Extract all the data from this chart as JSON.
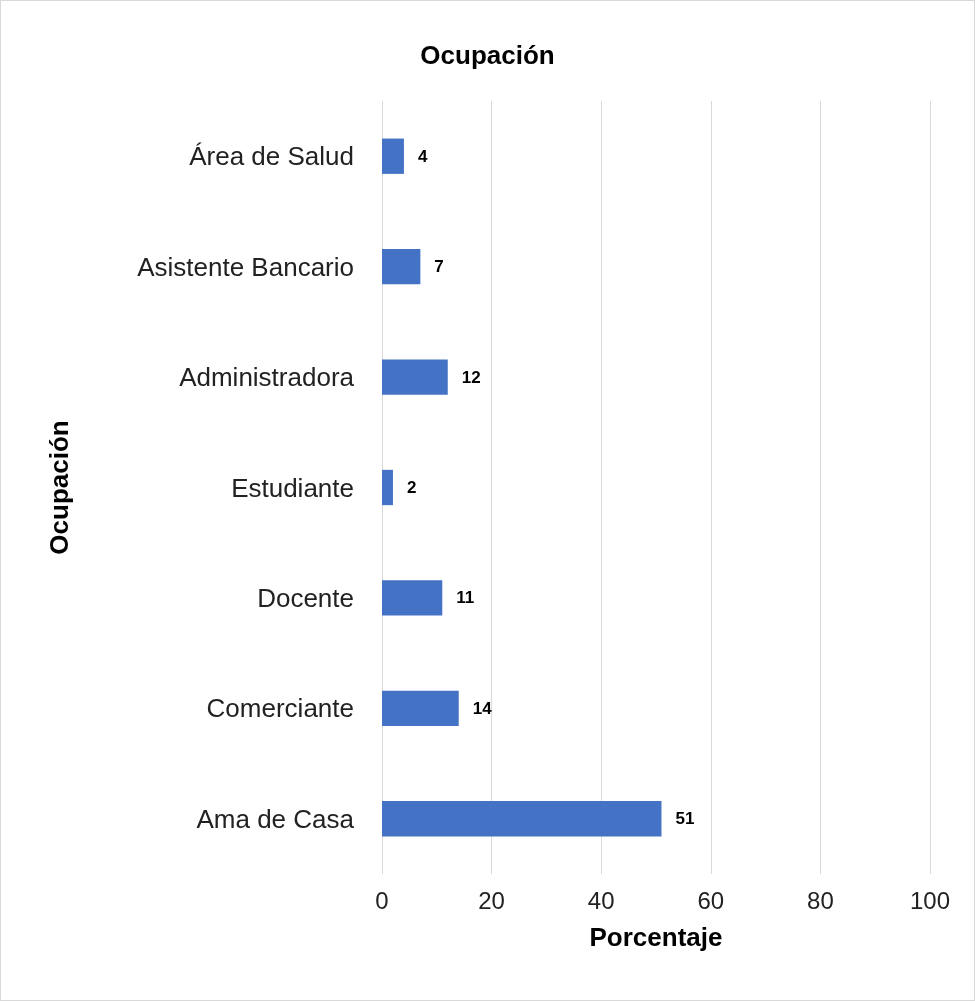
{
  "chart_data": {
    "type": "bar",
    "orientation": "horizontal",
    "title": "Ocupación",
    "xlabel": "Porcentaje",
    "ylabel": "Ocupación",
    "categories": [
      "Área de Salud",
      "Asistente Bancario",
      "Administradora",
      "Estudiante",
      "Docente",
      "Comerciante",
      "Ama de Casa"
    ],
    "values": [
      4,
      7,
      12,
      2,
      11,
      14,
      51
    ],
    "color": "#4472c4",
    "xlim": [
      0,
      100
    ],
    "xticks": [
      0,
      20,
      40,
      60,
      80,
      100
    ],
    "grid": "x",
    "data_labels": true
  }
}
